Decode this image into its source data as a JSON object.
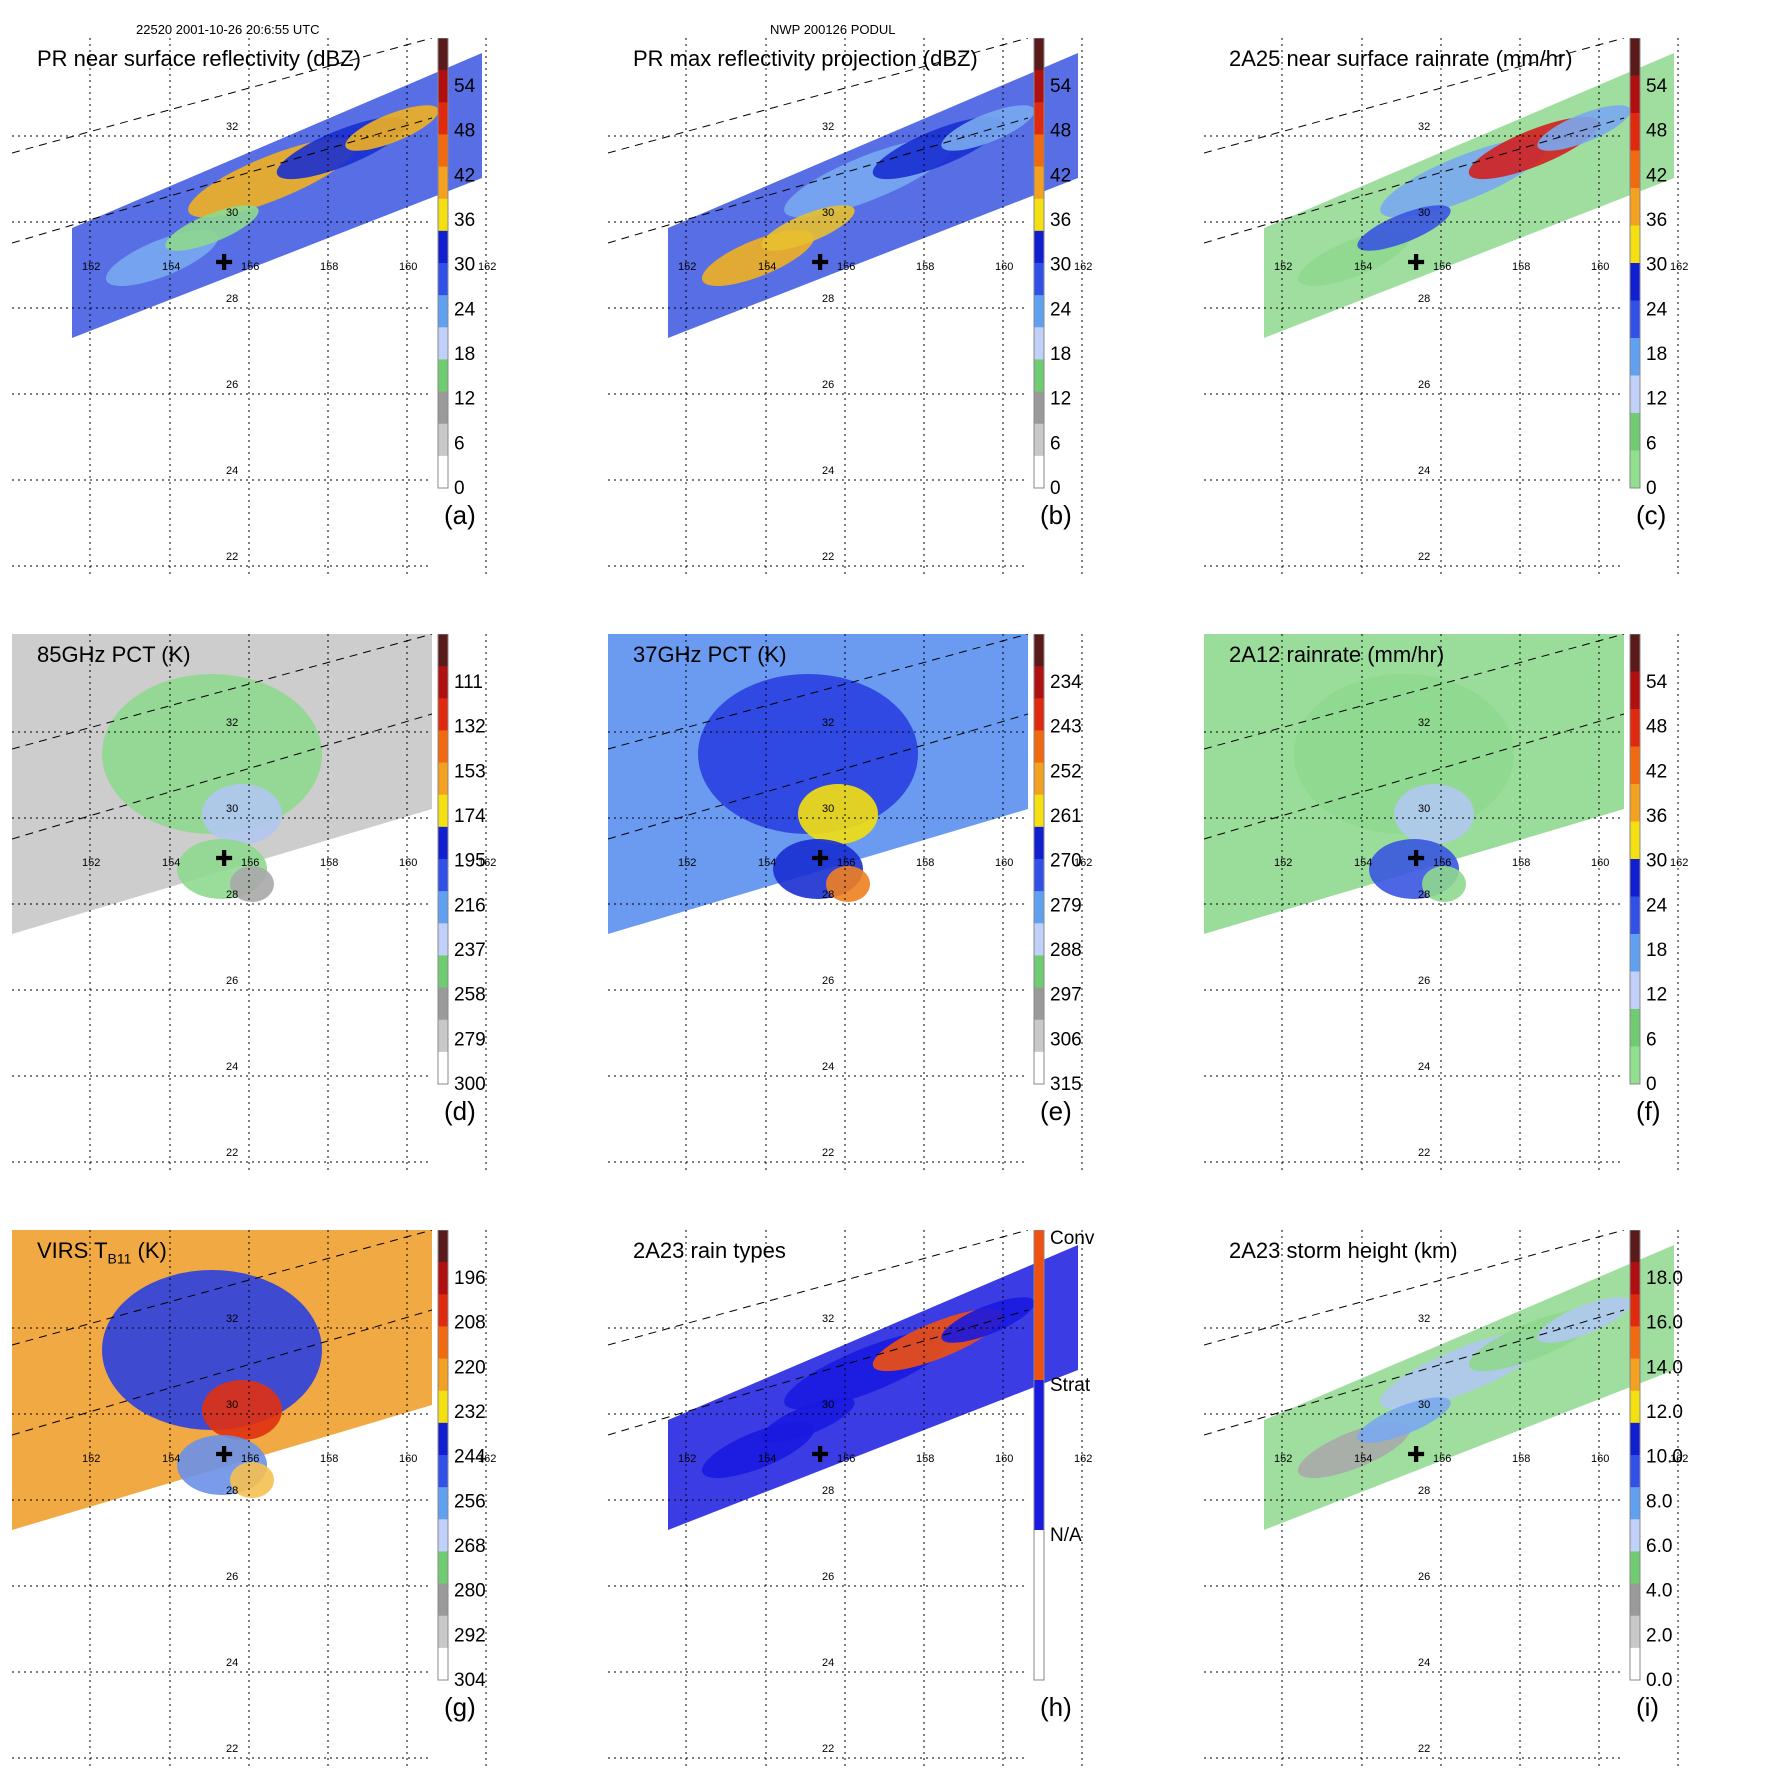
{
  "header": {
    "orbit_info": "22520 2001-10-26 20:6:55 UTC",
    "storm_info": "NWP 200126 PODUL"
  },
  "axes": {
    "lon_labels": [
      "152",
      "154",
      "156",
      "158",
      "160",
      "162"
    ],
    "lat_labels": [
      "32",
      "30",
      "28",
      "26",
      "24",
      "22"
    ]
  },
  "panels": [
    {
      "id": "a",
      "title": "PR near surface reflectivity (dBZ)",
      "label": "(a)",
      "swath": "pr",
      "colorbar_ticks": [
        "54",
        "48",
        "42",
        "36",
        "30",
        "24",
        "18",
        "12",
        "6",
        "0"
      ],
      "colorbar_colors": [
        "#5a1a1a",
        "#b01010",
        "#e02a10",
        "#f26a10",
        "#f4a020",
        "#f4e010",
        "#1020d0",
        "#3050e8",
        "#60a0f0",
        "#c0d0f8",
        "#70cc70",
        "#9a9a9a",
        "#c8c8c8",
        "#ffffff"
      ],
      "fill_colors": [
        "#3a55e0",
        "#7aa8f0",
        "#f0b020",
        "#1a2fd0",
        "#8fd88f"
      ]
    },
    {
      "id": "b",
      "title": "PR max reflectivity projection (dBZ)",
      "label": "(b)",
      "swath": "pr",
      "colorbar_ticks": [
        "54",
        "48",
        "42",
        "36",
        "30",
        "24",
        "18",
        "12",
        "6",
        "0"
      ],
      "colorbar_colors": [
        "#5a1a1a",
        "#b01010",
        "#e02a10",
        "#f26a10",
        "#f4a020",
        "#f4e010",
        "#1020d0",
        "#3050e8",
        "#60a0f0",
        "#c0d0f8",
        "#70cc70",
        "#9a9a9a",
        "#c8c8c8",
        "#ffffff"
      ],
      "fill_colors": [
        "#3a55e0",
        "#f0b020",
        "#7aa8f0",
        "#1a2fd0",
        "#e8c030"
      ]
    },
    {
      "id": "c",
      "title": "2A25 near surface rainrate (mm/hr)",
      "label": "(c)",
      "swath": "pr",
      "colorbar_ticks": [
        "54",
        "48",
        "42",
        "36",
        "30",
        "24",
        "18",
        "12",
        "6",
        "0"
      ],
      "colorbar_colors": [
        "#5a1a1a",
        "#b01010",
        "#e02a10",
        "#f26a10",
        "#f4a020",
        "#f4e010",
        "#1020d0",
        "#3050e8",
        "#60a0f0",
        "#c0d0f8",
        "#70cc70",
        "#90e090"
      ],
      "fill_colors": [
        "#8fd88f",
        "#8fd88f",
        "#7aa8f0",
        "#d02020",
        "#3a55e0"
      ]
    },
    {
      "id": "d",
      "title": "85GHz PCT (K)",
      "label": "(d)",
      "swath": "tmi",
      "colorbar_ticks": [
        "111",
        "132",
        "153",
        "174",
        "195",
        "216",
        "237",
        "258",
        "279",
        "300"
      ],
      "colorbar_colors": [
        "#5a1a1a",
        "#b01010",
        "#e02a10",
        "#f26a10",
        "#f4a020",
        "#f4e010",
        "#1020d0",
        "#3050e8",
        "#60a0f0",
        "#c0d0f8",
        "#70cc70",
        "#9a9a9a",
        "#c8c8c8",
        "#ffffff"
      ],
      "fill_colors": [
        "#c8c8c8",
        "#8fd88f",
        "#b0c8f0",
        "#8fd88f",
        "#a8a8a8"
      ]
    },
    {
      "id": "e",
      "title": "37GHz PCT (K)",
      "label": "(e)",
      "swath": "tmi",
      "colorbar_ticks": [
        "234",
        "243",
        "252",
        "261",
        "270",
        "279",
        "288",
        "297",
        "306",
        "315"
      ],
      "colorbar_colors": [
        "#5a1a1a",
        "#b01010",
        "#e02a10",
        "#f26a10",
        "#f4a020",
        "#f4e010",
        "#1020d0",
        "#3050e8",
        "#60a0f0",
        "#c0d0f8",
        "#70cc70",
        "#9a9a9a",
        "#c8c8c8",
        "#ffffff"
      ],
      "fill_colors": [
        "#5a90f0",
        "#2a40e0",
        "#f4e010",
        "#1a2fd0",
        "#f08020"
      ]
    },
    {
      "id": "f",
      "title": "2A12 rainrate (mm/hr)",
      "label": "(f)",
      "swath": "tmi",
      "colorbar_ticks": [
        "54",
        "48",
        "42",
        "36",
        "30",
        "24",
        "18",
        "12",
        "6",
        "0"
      ],
      "colorbar_colors": [
        "#5a1a1a",
        "#b01010",
        "#e02a10",
        "#f26a10",
        "#f4a020",
        "#f4e010",
        "#1020d0",
        "#3050e8",
        "#60a0f0",
        "#c0d0f8",
        "#70cc70",
        "#90e090"
      ],
      "fill_colors": [
        "#8fd88f",
        "#8fd88f",
        "#b0c8f0",
        "#3a55e0",
        "#8fd88f"
      ]
    },
    {
      "id": "g",
      "title": "VIRS T",
      "title_sub": "B11",
      "title_suffix": " (K)",
      "label": "(g)",
      "swath": "tmi",
      "colorbar_ticks": [
        "196",
        "208",
        "220",
        "232",
        "244",
        "256",
        "268",
        "280",
        "292",
        "304"
      ],
      "colorbar_colors": [
        "#5a1a1a",
        "#b01010",
        "#e02a10",
        "#f26a10",
        "#f4a020",
        "#f4e010",
        "#1020d0",
        "#3050e8",
        "#60a0f0",
        "#c0d0f8",
        "#70cc70",
        "#9a9a9a",
        "#c8c8c8",
        "#ffffff"
      ],
      "fill_colors": [
        "#f0a030",
        "#2a40e0",
        "#e03010",
        "#6a90e8",
        "#f4c050"
      ]
    },
    {
      "id": "h",
      "title": "2A23 rain types",
      "label": "(h)",
      "swath": "pr",
      "colorbar_ticks": [
        "Conv",
        "Strat",
        "N/A"
      ],
      "colorbar_colors": [
        "#f05010",
        "#1a1ae0",
        "#ffffff"
      ],
      "fill_colors": [
        "#1a1ae0",
        "#1a1ae0",
        "#1a1ae0",
        "#f05010",
        "#1a1ae0"
      ]
    },
    {
      "id": "i",
      "title": "2A23 storm height (km)",
      "label": "(i)",
      "swath": "pr",
      "colorbar_ticks": [
        "18.0",
        "16.0",
        "14.0",
        "12.0",
        "10.0",
        "8.0",
        "6.0",
        "4.0",
        "2.0",
        "0.0"
      ],
      "colorbar_colors": [
        "#5a1a1a",
        "#b01010",
        "#e02a10",
        "#f26a10",
        "#f4a020",
        "#f4e010",
        "#1020d0",
        "#3050e8",
        "#60a0f0",
        "#c0d0f8",
        "#70cc70",
        "#9a9a9a",
        "#c8c8c8",
        "#ffffff"
      ],
      "fill_colors": [
        "#8fd88f",
        "#a8a8a8",
        "#b0c8f0",
        "#8fd88f",
        "#7aa8f0"
      ]
    }
  ]
}
